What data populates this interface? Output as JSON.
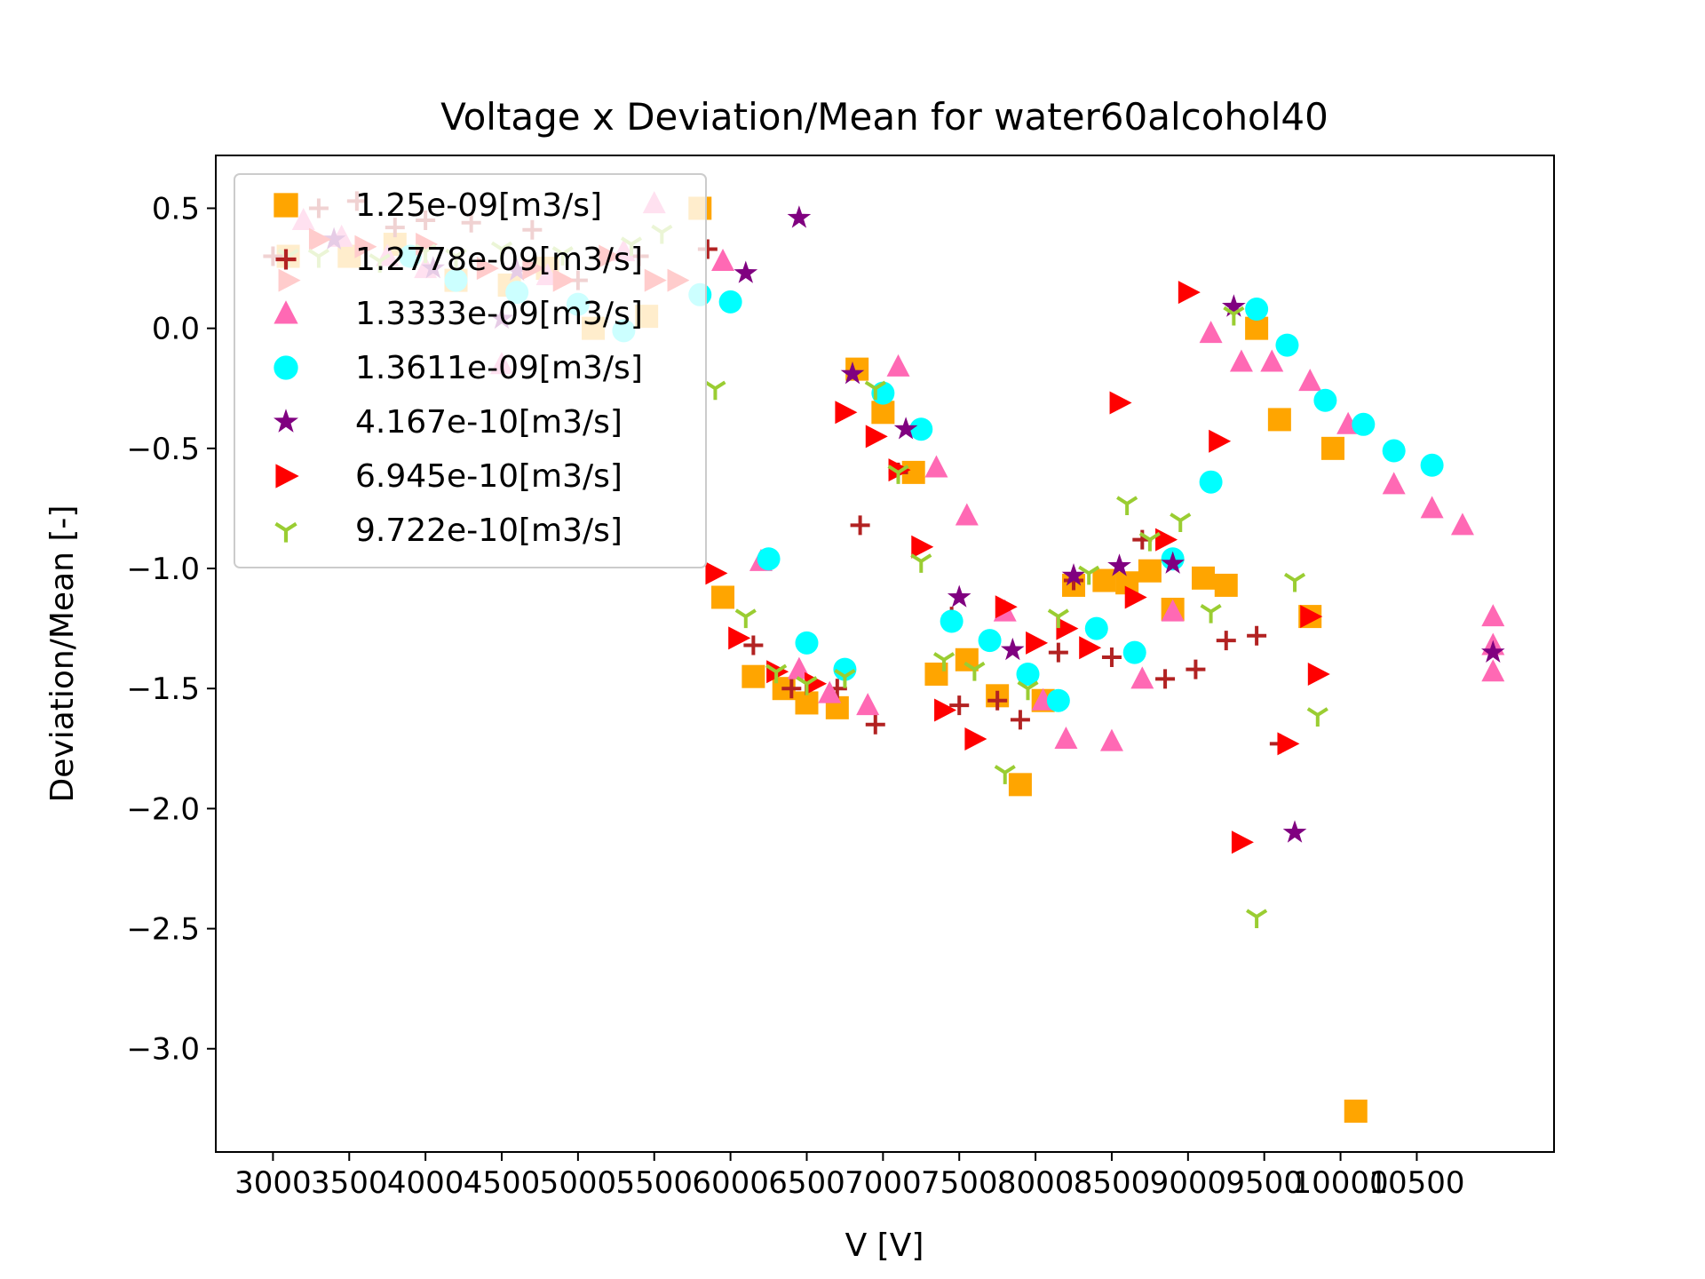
{
  "chart_data": {
    "type": "scatter",
    "title": "Voltage x Deviation/Mean  for water60alcohol40",
    "xlabel": "V [V]",
    "ylabel": "Deviation/Mean [-]",
    "xlim": [
      2625,
      11400
    ],
    "ylim": [
      -3.43,
      0.72
    ],
    "x_ticks": [
      3000,
      3500,
      4000,
      4500,
      5000,
      5500,
      6000,
      6500,
      7000,
      7500,
      8000,
      8500,
      9000,
      9500,
      10000,
      10500
    ],
    "x_tick_labels": [
      "3000",
      "3500",
      "4000",
      "4500",
      "5000",
      "5500",
      "6000",
      "6500",
      "7000",
      "7500",
      "8000",
      "8500",
      "9000",
      "9500",
      "10000",
      "10500"
    ],
    "y_ticks": [
      0.5,
      0.0,
      -0.5,
      -1.0,
      -1.5,
      -2.0,
      -2.5,
      -3.0
    ],
    "y_tick_labels": [
      "0.5",
      "0.0",
      "−0.5",
      "−1.0",
      "−1.5",
      "−2.0",
      "−2.5",
      "−3.0"
    ],
    "legend_position": "upper-left",
    "grid": false,
    "series": [
      {
        "name": "1.25e-09[m3/s]",
        "marker": "square",
        "color": "#FFA500",
        "points": [
          [
            3100,
            0.3
          ],
          [
            3500,
            0.3
          ],
          [
            3800,
            0.35
          ],
          [
            4200,
            0.2
          ],
          [
            4550,
            0.18
          ],
          [
            4800,
            0.25
          ],
          [
            5100,
            0.0
          ],
          [
            5450,
            0.05
          ],
          [
            5800,
            0.5
          ],
          [
            5950,
            -1.12
          ],
          [
            6150,
            -1.45
          ],
          [
            6350,
            -1.5
          ],
          [
            6500,
            -1.56
          ],
          [
            6700,
            -1.58
          ],
          [
            6830,
            -0.17
          ],
          [
            7000,
            -0.35
          ],
          [
            7200,
            -0.6
          ],
          [
            7350,
            -1.44
          ],
          [
            7550,
            -1.38
          ],
          [
            7750,
            -1.53
          ],
          [
            7900,
            -1.9
          ],
          [
            8050,
            -1.55
          ],
          [
            8250,
            -1.07
          ],
          [
            8450,
            -1.05
          ],
          [
            8600,
            -1.06
          ],
          [
            8750,
            -1.01
          ],
          [
            8900,
            -1.17
          ],
          [
            9100,
            -1.04
          ],
          [
            9250,
            -1.07
          ],
          [
            9450,
            0.0
          ],
          [
            9600,
            -0.38
          ],
          [
            9800,
            -1.2
          ],
          [
            9950,
            -0.5
          ],
          [
            10100,
            -3.26
          ]
        ]
      },
      {
        "name": "1.2778e-09[m3/s]",
        "marker": "plus",
        "color": "#B22222",
        "points": [
          [
            3000,
            0.3
          ],
          [
            3300,
            0.5
          ],
          [
            3550,
            0.53
          ],
          [
            3800,
            0.42
          ],
          [
            4000,
            0.45
          ],
          [
            4300,
            0.44
          ],
          [
            4700,
            0.41
          ],
          [
            5000,
            0.2
          ],
          [
            5400,
            0.3
          ],
          [
            5850,
            0.33
          ],
          [
            6150,
            -1.32
          ],
          [
            6400,
            -1.5
          ],
          [
            6700,
            -1.5
          ],
          [
            6850,
            -0.82
          ],
          [
            6950,
            -1.65
          ],
          [
            7100,
            -0.6
          ],
          [
            7450,
            -1.2
          ],
          [
            7500,
            -1.57
          ],
          [
            7750,
            -1.55
          ],
          [
            7900,
            -1.63
          ],
          [
            8150,
            -1.35
          ],
          [
            8250,
            -1.05
          ],
          [
            8500,
            -1.37
          ],
          [
            8700,
            -0.88
          ],
          [
            8850,
            -1.46
          ],
          [
            9050,
            -1.42
          ],
          [
            9250,
            -1.3
          ],
          [
            9450,
            -1.28
          ],
          [
            9600,
            -1.73
          ]
        ]
      },
      {
        "name": "1.3333e-09[m3/s]",
        "marker": "triangle-up",
        "color": "#FF69B4",
        "points": [
          [
            3200,
            0.45
          ],
          [
            3450,
            0.38
          ],
          [
            3750,
            0.3
          ],
          [
            4000,
            0.25
          ],
          [
            4500,
            -0.15
          ],
          [
            4800,
            0.22
          ],
          [
            5300,
            0.32
          ],
          [
            5500,
            0.52
          ],
          [
            5950,
            0.28
          ],
          [
            6200,
            -0.97
          ],
          [
            6450,
            -1.42
          ],
          [
            6650,
            -1.52
          ],
          [
            6900,
            -1.57
          ],
          [
            7100,
            -0.16
          ],
          [
            7350,
            -0.58
          ],
          [
            7550,
            -0.78
          ],
          [
            7800,
            -1.18
          ],
          [
            8050,
            -1.55
          ],
          [
            8200,
            -1.71
          ],
          [
            8500,
            -1.72
          ],
          [
            8700,
            -1.46
          ],
          [
            8900,
            -1.18
          ],
          [
            9150,
            -0.02
          ],
          [
            9350,
            -0.14
          ],
          [
            9550,
            -0.14
          ],
          [
            9800,
            -0.22
          ],
          [
            10050,
            -0.4
          ],
          [
            10350,
            -0.65
          ],
          [
            10600,
            -0.75
          ],
          [
            10800,
            -0.82
          ],
          [
            11000,
            -1.2
          ],
          [
            11000,
            -1.32
          ],
          [
            11000,
            -1.43
          ]
        ]
      },
      {
        "name": "1.3611e-09[m3/s]",
        "marker": "circle",
        "color": "#00FFFF",
        "points": [
          [
            3900,
            0.3
          ],
          [
            4200,
            0.2
          ],
          [
            4600,
            0.15
          ],
          [
            5000,
            0.1
          ],
          [
            5300,
            -0.01
          ],
          [
            5800,
            0.14
          ],
          [
            6000,
            0.11
          ],
          [
            6250,
            -0.96
          ],
          [
            6500,
            -1.31
          ],
          [
            6750,
            -1.42
          ],
          [
            7000,
            -0.27
          ],
          [
            7250,
            -0.42
          ],
          [
            7450,
            -1.22
          ],
          [
            7700,
            -1.3
          ],
          [
            7950,
            -1.44
          ],
          [
            8150,
            -1.55
          ],
          [
            8400,
            -1.25
          ],
          [
            8650,
            -1.35
          ],
          [
            8900,
            -0.96
          ],
          [
            9150,
            -0.64
          ],
          [
            9450,
            0.08
          ],
          [
            9650,
            -0.07
          ],
          [
            9900,
            -0.3
          ],
          [
            10150,
            -0.4
          ],
          [
            10350,
            -0.51
          ],
          [
            10600,
            -0.57
          ]
        ]
      },
      {
        "name": "4.167e-10[m3/s]",
        "marker": "star",
        "color": "#800080",
        "points": [
          [
            3400,
            0.37
          ],
          [
            4050,
            0.25
          ],
          [
            4500,
            0.04
          ],
          [
            4600,
            0.24
          ],
          [
            6100,
            0.23
          ],
          [
            6450,
            0.46
          ],
          [
            6800,
            -0.19
          ],
          [
            7150,
            -0.42
          ],
          [
            7500,
            -1.12
          ],
          [
            7850,
            -1.34
          ],
          [
            8250,
            -1.03
          ],
          [
            8550,
            -0.99
          ],
          [
            8900,
            -0.98
          ],
          [
            9300,
            0.09
          ],
          [
            9700,
            -2.1
          ],
          [
            11000,
            -1.35
          ]
        ]
      },
      {
        "name": "6.945e-10[m3/s]",
        "marker": "triangle-right",
        "color": "#FF0000",
        "points": [
          [
            3100,
            0.2
          ],
          [
            3300,
            0.37
          ],
          [
            3600,
            0.34
          ],
          [
            4000,
            0.35
          ],
          [
            4400,
            0.25
          ],
          [
            4700,
            0.25
          ],
          [
            4900,
            0.2
          ],
          [
            5200,
            0.3
          ],
          [
            5500,
            0.2
          ],
          [
            5650,
            0.2
          ],
          [
            5900,
            -1.02
          ],
          [
            6050,
            -1.29
          ],
          [
            6300,
            -1.43
          ],
          [
            6550,
            -1.48
          ],
          [
            6750,
            -0.35
          ],
          [
            6950,
            -0.45
          ],
          [
            7100,
            -0.59
          ],
          [
            7250,
            -0.91
          ],
          [
            7400,
            -1.59
          ],
          [
            7600,
            -1.71
          ],
          [
            7800,
            -1.16
          ],
          [
            8000,
            -1.31
          ],
          [
            8200,
            -1.25
          ],
          [
            8350,
            -1.33
          ],
          [
            8550,
            -0.31
          ],
          [
            8650,
            -1.12
          ],
          [
            8850,
            -0.88
          ],
          [
            9000,
            0.15
          ],
          [
            9200,
            -0.47
          ],
          [
            9350,
            -2.14
          ],
          [
            9650,
            -1.73
          ],
          [
            9800,
            -1.2
          ],
          [
            9850,
            -1.44
          ]
        ]
      },
      {
        "name": "9.722e-10[m3/s]",
        "marker": "tri-down",
        "color": "#9ACD32",
        "points": [
          [
            3100,
            0.3
          ],
          [
            3300,
            0.3
          ],
          [
            3700,
            0.28
          ],
          [
            4000,
            0.32
          ],
          [
            4200,
            0.3
          ],
          [
            4500,
            0.33
          ],
          [
            4900,
            0.31
          ],
          [
            5350,
            0.35
          ],
          [
            5550,
            0.4
          ],
          [
            5900,
            -0.25
          ],
          [
            6100,
            -1.2
          ],
          [
            6300,
            -1.43
          ],
          [
            6500,
            -1.48
          ],
          [
            6750,
            -1.45
          ],
          [
            6950,
            -0.25
          ],
          [
            7100,
            -0.6
          ],
          [
            7250,
            -0.97
          ],
          [
            7400,
            -1.38
          ],
          [
            7600,
            -1.42
          ],
          [
            7800,
            -1.85
          ],
          [
            7950,
            -1.5
          ],
          [
            8150,
            -1.2
          ],
          [
            8350,
            -1.02
          ],
          [
            8600,
            -0.73
          ],
          [
            8750,
            -0.88
          ],
          [
            8950,
            -0.8
          ],
          [
            9150,
            -1.18
          ],
          [
            9300,
            0.06
          ],
          [
            9450,
            -2.45
          ],
          [
            9700,
            -1.05
          ],
          [
            9850,
            -1.61
          ]
        ]
      }
    ]
  }
}
